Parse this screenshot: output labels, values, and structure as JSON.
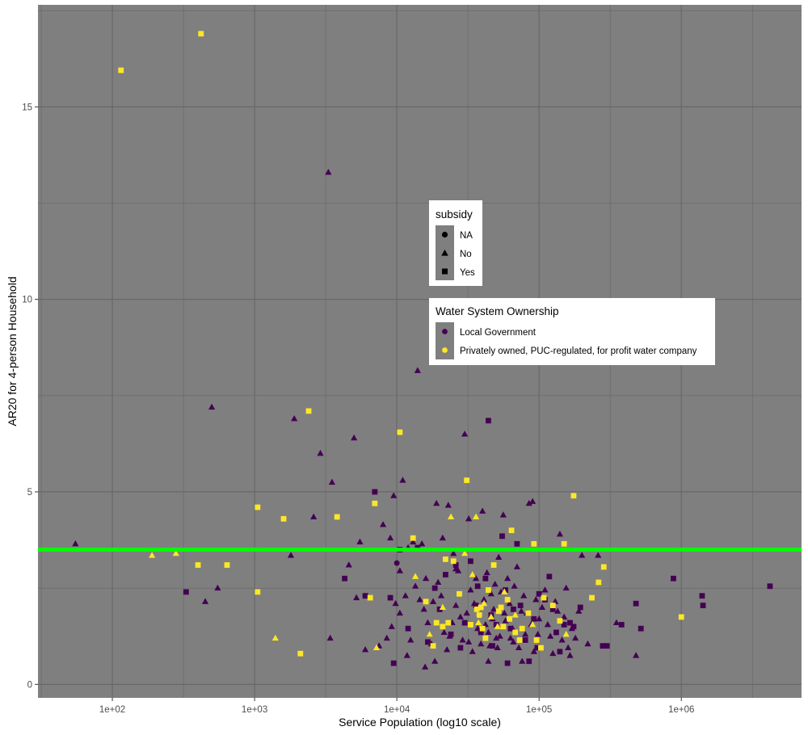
{
  "chart_data": {
    "type": "scatter",
    "x_scale": "log10",
    "xlabel": "Service Population (log10 scale)",
    "ylabel": "AR20 for 4-person Household",
    "xlim": [
      30,
      7000000
    ],
    "ylim": [
      -0.35,
      17.65
    ],
    "x_ticks": [
      {
        "value": 100,
        "label": "1e+02"
      },
      {
        "value": 1000,
        "label": "1e+03"
      },
      {
        "value": 10000,
        "label": "1e+04"
      },
      {
        "value": 100000,
        "label": "1e+05"
      },
      {
        "value": 1000000,
        "label": "1e+06"
      }
    ],
    "y_ticks": [
      {
        "value": 0,
        "label": "0"
      },
      {
        "value": 5,
        "label": "5"
      },
      {
        "value": 10,
        "label": "10"
      },
      {
        "value": 15,
        "label": "15"
      }
    ],
    "reference_line": {
      "y": 3.5,
      "color": "#00ff00"
    },
    "panel_background": "#7f7f7f",
    "grid_color": "#666666",
    "grid": true,
    "colors": {
      "Local Government": "#440154",
      "Privately owned, PUC-regulated, for profit water company": "#fde725"
    },
    "legends": [
      {
        "title": "subsidy",
        "placement": "inside-center",
        "items": [
          {
            "label": "NA",
            "shape": "circle"
          },
          {
            "label": "No",
            "shape": "triangle"
          },
          {
            "label": "Yes",
            "shape": "square"
          }
        ]
      },
      {
        "title": "Water System Ownership",
        "placement": "inside-center-right",
        "items": [
          {
            "label": "Local Government",
            "color": "#440154"
          },
          {
            "label": "Privately owned, PUC-regulated, for profit water company",
            "color": "#fde725"
          }
        ]
      }
    ],
    "series": [
      {
        "ownership": "Local Government",
        "subsidy": "NA",
        "points": [
          [
            10000,
            3.15
          ]
        ]
      },
      {
        "ownership": "Local Government",
        "subsidy": "No",
        "points": [
          [
            55,
            3.65
          ],
          [
            450,
            2.15
          ],
          [
            500,
            7.2
          ],
          [
            550,
            2.5
          ],
          [
            1800,
            3.35
          ],
          [
            1900,
            6.9
          ],
          [
            2600,
            4.35
          ],
          [
            2900,
            6.0
          ],
          [
            3300,
            13.3
          ],
          [
            3500,
            5.25
          ],
          [
            3400,
            1.2
          ],
          [
            4600,
            3.1
          ],
          [
            5000,
            6.4
          ],
          [
            5200,
            2.25
          ],
          [
            5500,
            3.7
          ],
          [
            8000,
            4.15
          ],
          [
            9000,
            3.8
          ],
          [
            9500,
            4.9
          ],
          [
            11000,
            5.3
          ],
          [
            10500,
            2.95
          ],
          [
            11500,
            2.3
          ],
          [
            12000,
            3.55
          ],
          [
            13000,
            3.7
          ],
          [
            14000,
            8.15
          ],
          [
            15000,
            3.65
          ],
          [
            16000,
            2.75
          ],
          [
            17000,
            1.3
          ],
          [
            18000,
            2.15
          ],
          [
            19000,
            4.7
          ],
          [
            21000,
            3.8
          ],
          [
            23000,
            4.65
          ],
          [
            25000,
            3.4
          ],
          [
            26000,
            2.05
          ],
          [
            28000,
            1.75
          ],
          [
            30000,
            6.5
          ],
          [
            32000,
            4.3
          ],
          [
            33000,
            2.45
          ],
          [
            35000,
            2.1
          ],
          [
            38000,
            1.8
          ],
          [
            40000,
            4.5
          ],
          [
            42000,
            1.55
          ],
          [
            44000,
            1.35
          ],
          [
            46000,
            2.35
          ],
          [
            48000,
            1.95
          ],
          [
            50000,
            1.2
          ],
          [
            52000,
            3.3
          ],
          [
            56000,
            4.4
          ],
          [
            58000,
            1.65
          ],
          [
            62000,
            2.1
          ],
          [
            65000,
            1.45
          ],
          [
            70000,
            3.05
          ],
          [
            75000,
            1.9
          ],
          [
            80000,
            1.3
          ],
          [
            85000,
            4.7
          ],
          [
            90000,
            4.75
          ],
          [
            95000,
            2.2
          ],
          [
            100000,
            1.7
          ],
          [
            110000,
            2.45
          ],
          [
            120000,
            1.25
          ],
          [
            130000,
            2.15
          ],
          [
            140000,
            3.9
          ],
          [
            150000,
            1.75
          ],
          [
            160000,
            0.95
          ],
          [
            170000,
            1.45
          ],
          [
            200000,
            3.35
          ],
          [
            220000,
            1.05
          ],
          [
            260000,
            3.35
          ],
          [
            350000,
            1.6
          ],
          [
            480000,
            0.75
          ],
          [
            6000,
            0.9
          ],
          [
            7500,
            1.0
          ],
          [
            8500,
            1.2
          ],
          [
            9200,
            1.5
          ],
          [
            10500,
            1.85
          ],
          [
            12500,
            1.15
          ],
          [
            13500,
            2.55
          ],
          [
            15500,
            1.95
          ],
          [
            17500,
            1.05
          ],
          [
            19500,
            2.65
          ],
          [
            21500,
            1.35
          ],
          [
            22500,
            0.9
          ],
          [
            24500,
            1.6
          ],
          [
            27000,
            2.95
          ],
          [
            29000,
            1.15
          ],
          [
            31000,
            1.85
          ],
          [
            34000,
            0.85
          ],
          [
            36000,
            2.75
          ],
          [
            39000,
            1.05
          ],
          [
            41000,
            2.2
          ],
          [
            43000,
            2.9
          ],
          [
            45000,
            1.0
          ],
          [
            47000,
            1.7
          ],
          [
            49000,
            2.6
          ],
          [
            51000,
            0.95
          ],
          [
            54000,
            2.4
          ],
          [
            57000,
            1.85
          ],
          [
            60000,
            2.75
          ],
          [
            63000,
            1.2
          ],
          [
            67000,
            2.55
          ],
          [
            72000,
            0.95
          ],
          [
            78000,
            2.3
          ],
          [
            82000,
            1.85
          ],
          [
            88000,
            1.55
          ],
          [
            92000,
            0.85
          ],
          [
            98000,
            1.3
          ],
          [
            105000,
            2.0
          ],
          [
            115000,
            1.55
          ],
          [
            125000,
            0.8
          ],
          [
            135000,
            1.9
          ],
          [
            145000,
            1.15
          ],
          [
            155000,
            2.5
          ],
          [
            165000,
            0.75
          ],
          [
            180000,
            1.2
          ],
          [
            190000,
            1.9
          ],
          [
            14500,
            2.2
          ],
          [
            16500,
            1.6
          ],
          [
            18500,
            0.6
          ],
          [
            20500,
            2.3
          ],
          [
            23500,
            1.25
          ],
          [
            26000,
            3.0
          ],
          [
            37000,
            1.45
          ],
          [
            53000,
            1.25
          ],
          [
            66000,
            1.1
          ],
          [
            76000,
            0.6
          ],
          [
            11800,
            0.75
          ],
          [
            9800,
            2.1
          ],
          [
            15800,
            0.45
          ],
          [
            32000,
            1.1
          ],
          [
            44000,
            0.6
          ]
        ]
      },
      {
        "ownership": "Local Government",
        "subsidy": "Yes",
        "points": [
          [
            330,
            2.4
          ],
          [
            4300,
            2.75
          ],
          [
            6000,
            2.3
          ],
          [
            7000,
            5.0
          ],
          [
            9000,
            2.25
          ],
          [
            9500,
            0.55
          ],
          [
            10500,
            3.5
          ],
          [
            12000,
            1.45
          ],
          [
            14000,
            3.55
          ],
          [
            16500,
            1.1
          ],
          [
            18500,
            2.5
          ],
          [
            20000,
            1.95
          ],
          [
            22000,
            2.85
          ],
          [
            24000,
            1.3
          ],
          [
            26000,
            3.1
          ],
          [
            30000,
            1.6
          ],
          [
            33000,
            3.2
          ],
          [
            36000,
            2.05
          ],
          [
            39000,
            1.35
          ],
          [
            42000,
            2.75
          ],
          [
            44000,
            6.85
          ],
          [
            46000,
            1.8
          ],
          [
            50000,
            1.55
          ],
          [
            55000,
            3.85
          ],
          [
            60000,
            0.55
          ],
          [
            66000,
            1.95
          ],
          [
            70000,
            3.65
          ],
          [
            80000,
            1.15
          ],
          [
            85000,
            0.6
          ],
          [
            92000,
            1.7
          ],
          [
            100000,
            2.35
          ],
          [
            110000,
            2.2
          ],
          [
            118000,
            2.8
          ],
          [
            132000,
            1.35
          ],
          [
            150000,
            1.55
          ],
          [
            165000,
            1.6
          ],
          [
            195000,
            2.0
          ],
          [
            280000,
            1.0
          ],
          [
            300000,
            1.0
          ],
          [
            380000,
            1.55
          ],
          [
            480000,
            2.1
          ],
          [
            520000,
            1.45
          ],
          [
            880000,
            2.75
          ],
          [
            1400000,
            2.3
          ],
          [
            1420000,
            2.05
          ],
          [
            4200000,
            2.55
          ],
          [
            28000,
            0.95
          ],
          [
            37000,
            2.55
          ],
          [
            47000,
            1.0
          ],
          [
            58000,
            2.45
          ],
          [
            63000,
            1.45
          ],
          [
            74000,
            2.05
          ],
          [
            97000,
            0.95
          ],
          [
            125000,
            1.95
          ],
          [
            140000,
            0.85
          ],
          [
            175000,
            1.5
          ]
        ]
      },
      {
        "ownership": "Privately owned, PUC-regulated, for profit water company",
        "subsidy": "No",
        "points": [
          [
            190,
            3.35
          ],
          [
            280,
            3.4
          ],
          [
            1400,
            1.2
          ],
          [
            7200,
            0.95
          ],
          [
            13500,
            2.8
          ],
          [
            17000,
            1.3
          ],
          [
            21000,
            2.0
          ],
          [
            30000,
            3.4
          ],
          [
            34000,
            2.85
          ],
          [
            37500,
            1.6
          ],
          [
            41000,
            2.1
          ],
          [
            46000,
            1.75
          ],
          [
            51000,
            1.5
          ],
          [
            57000,
            2.4
          ],
          [
            68000,
            1.8
          ],
          [
            90000,
            1.55
          ],
          [
            155000,
            1.3
          ],
          [
            36000,
            4.35
          ],
          [
            24000,
            4.35
          ]
        ]
      },
      {
        "ownership": "Privately owned, PUC-regulated, for profit water company",
        "subsidy": "Yes",
        "points": [
          [
            115,
            15.95
          ],
          [
            420,
            16.9
          ],
          [
            400,
            3.1
          ],
          [
            640,
            3.1
          ],
          [
            1050,
            4.6
          ],
          [
            1050,
            2.4
          ],
          [
            1600,
            4.3
          ],
          [
            2100,
            0.8
          ],
          [
            2400,
            7.1
          ],
          [
            3800,
            4.35
          ],
          [
            6500,
            2.25
          ],
          [
            7000,
            4.7
          ],
          [
            10500,
            6.55
          ],
          [
            13000,
            3.8
          ],
          [
            16000,
            2.15
          ],
          [
            19000,
            1.6
          ],
          [
            21000,
            1.5
          ],
          [
            22000,
            3.25
          ],
          [
            25000,
            3.2
          ],
          [
            27500,
            2.35
          ],
          [
            31000,
            5.3
          ],
          [
            33000,
            1.55
          ],
          [
            36500,
            1.95
          ],
          [
            40000,
            1.45
          ],
          [
            44000,
            2.45
          ],
          [
            48000,
            3.1
          ],
          [
            52000,
            1.9
          ],
          [
            56000,
            1.5
          ],
          [
            60000,
            2.2
          ],
          [
            64000,
            4.0
          ],
          [
            73000,
            1.15
          ],
          [
            76000,
            1.45
          ],
          [
            92000,
            3.65
          ],
          [
            96000,
            1.15
          ],
          [
            103000,
            0.95
          ],
          [
            108000,
            2.25
          ],
          [
            140000,
            1.65
          ],
          [
            150000,
            3.65
          ],
          [
            175000,
            4.9
          ],
          [
            235000,
            2.25
          ],
          [
            262000,
            2.65
          ],
          [
            285000,
            3.05
          ],
          [
            1000000,
            1.75
          ],
          [
            18000,
            1.0
          ],
          [
            23000,
            1.6
          ],
          [
            39000,
            2.0
          ],
          [
            42000,
            1.2
          ],
          [
            54000,
            2.0
          ],
          [
            62000,
            1.7
          ],
          [
            68000,
            1.35
          ],
          [
            84000,
            1.85
          ],
          [
            125000,
            2.05
          ],
          [
            38000,
            1.8
          ]
        ]
      }
    ]
  }
}
